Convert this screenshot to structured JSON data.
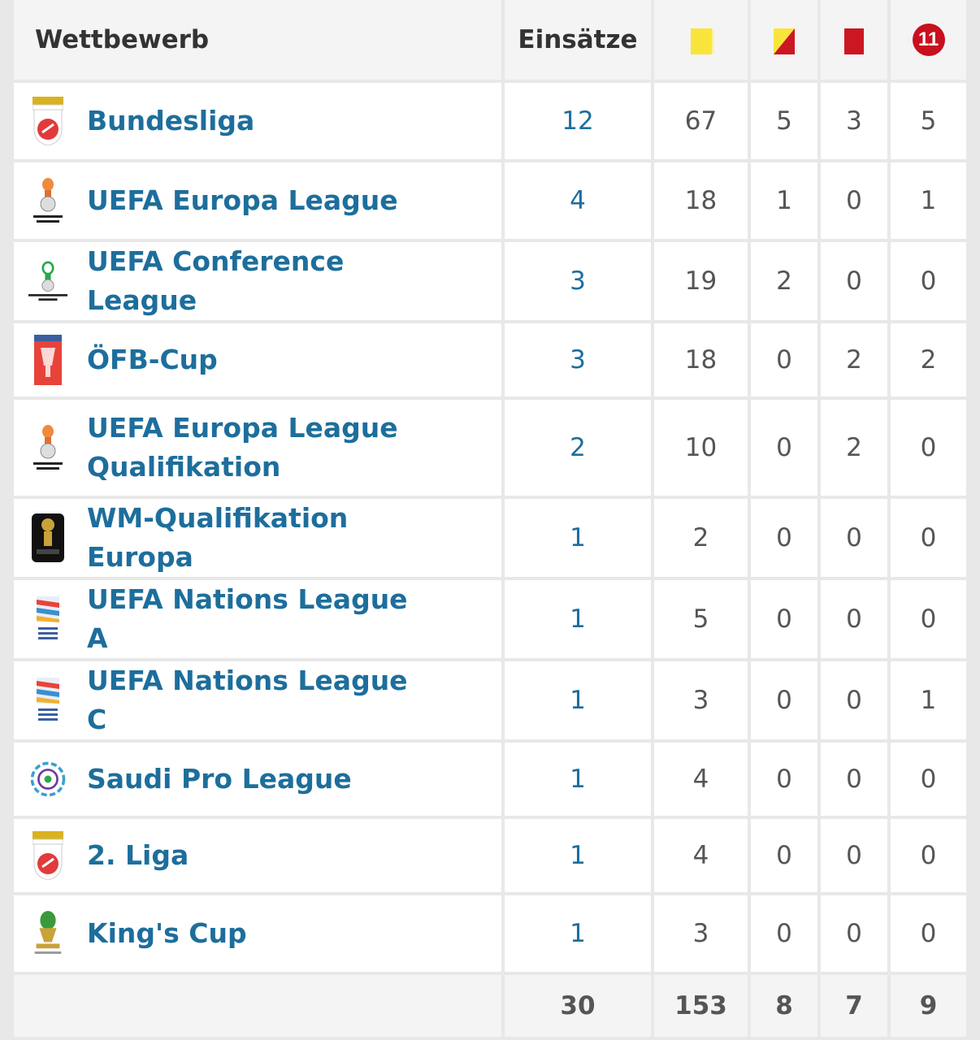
{
  "header": {
    "competition": "Wettbewerb",
    "appearances": "Einsätze",
    "penalty_icon_number": "11"
  },
  "icons": {
    "yellow_card": "yellow-card-icon",
    "yellow_red_card": "yellow-red-card-icon",
    "red_card": "red-card-icon",
    "penalty": "penalty-icon"
  },
  "colors": {
    "link": "#1d6e9c",
    "yellow": "#f9e43c",
    "red": "#cc1622"
  },
  "rows": [
    {
      "name": "Bundesliga",
      "logo": "bundesliga-logo-icon",
      "apps": "12",
      "yellow": "67",
      "yellow_red": "5",
      "red": "3",
      "pen": "5"
    },
    {
      "name": "UEFA Europa League",
      "logo": "europa-league-logo-icon",
      "apps": "4",
      "yellow": "18",
      "yellow_red": "1",
      "red": "0",
      "pen": "1"
    },
    {
      "name": "UEFA Conference League",
      "logo": "conference-league-logo-icon",
      "apps": "3",
      "yellow": "19",
      "yellow_red": "2",
      "red": "0",
      "pen": "0"
    },
    {
      "name": "ÖFB-Cup",
      "logo": "oefb-cup-logo-icon",
      "apps": "3",
      "yellow": "18",
      "yellow_red": "0",
      "red": "2",
      "pen": "2"
    },
    {
      "name": "UEFA Europa League Qualifikation",
      "logo": "europa-league-logo-icon",
      "apps": "2",
      "yellow": "10",
      "yellow_red": "0",
      "red": "2",
      "pen": "0"
    },
    {
      "name": "WM-Qualifikation Europa",
      "logo": "world-cup-qualification-logo-icon",
      "apps": "1",
      "yellow": "2",
      "yellow_red": "0",
      "red": "0",
      "pen": "0"
    },
    {
      "name": "UEFA Nations League A",
      "logo": "nations-league-logo-icon",
      "apps": "1",
      "yellow": "5",
      "yellow_red": "0",
      "red": "0",
      "pen": "0"
    },
    {
      "name": "UEFA Nations League C",
      "logo": "nations-league-logo-icon",
      "apps": "1",
      "yellow": "3",
      "yellow_red": "0",
      "red": "0",
      "pen": "1"
    },
    {
      "name": "Saudi Pro League",
      "logo": "saudi-pro-league-logo-icon",
      "apps": "1",
      "yellow": "4",
      "yellow_red": "0",
      "red": "0",
      "pen": "0"
    },
    {
      "name": "2. Liga",
      "logo": "2-liga-logo-icon",
      "apps": "1",
      "yellow": "4",
      "yellow_red": "0",
      "red": "0",
      "pen": "0"
    },
    {
      "name": "King's Cup",
      "logo": "kings-cup-logo-icon",
      "apps": "1",
      "yellow": "3",
      "yellow_red": "0",
      "red": "0",
      "pen": "0"
    }
  ],
  "totals": {
    "apps": "30",
    "yellow": "153",
    "yellow_red": "8",
    "red": "7",
    "pen": "9"
  }
}
